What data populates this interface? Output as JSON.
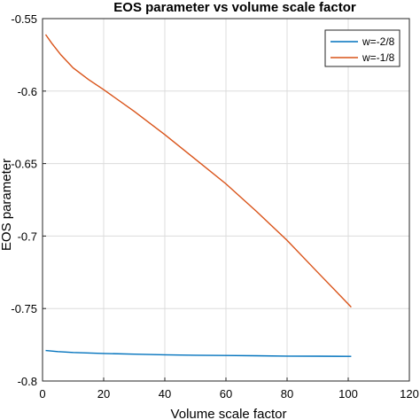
{
  "chart_data": {
    "type": "line",
    "title": "EOS parameter vs volume scale factor",
    "xlabel": "Volume scale factor",
    "ylabel": "EOS parameter",
    "xlim": [
      0,
      120
    ],
    "ylim": [
      -0.8,
      -0.55
    ],
    "xticks": [
      0,
      20,
      40,
      60,
      80,
      100,
      120
    ],
    "yticks": [
      -0.8,
      -0.75,
      -0.7,
      -0.65,
      -0.6,
      -0.55
    ],
    "xtick_labels": [
      "0",
      "20",
      "40",
      "60",
      "80",
      "100",
      "120"
    ],
    "ytick_labels": [
      "-0.8",
      "-0.75",
      "-0.7",
      "-0.65",
      "-0.6",
      "-0.55"
    ],
    "grid": true,
    "legend_position": "top-right",
    "series": [
      {
        "name": "w=-2/8",
        "color": "#0072BD",
        "x": [
          1,
          5,
          10,
          20,
          30,
          40,
          50,
          60,
          70,
          80,
          90,
          101
        ],
        "y": [
          -0.779,
          -0.7797,
          -0.7803,
          -0.781,
          -0.7815,
          -0.7819,
          -0.7822,
          -0.7824,
          -0.7826,
          -0.7828,
          -0.7829,
          -0.783
        ]
      },
      {
        "name": "w=-1/8",
        "color": "#D95319",
        "x": [
          1,
          3,
          6,
          10,
          15,
          20,
          30,
          40,
          50,
          60,
          70,
          80,
          90,
          101
        ],
        "y": [
          -0.561,
          -0.567,
          -0.575,
          -0.584,
          -0.592,
          -0.599,
          -0.614,
          -0.63,
          -0.647,
          -0.664,
          -0.683,
          -0.703,
          -0.725,
          -0.749
        ]
      }
    ]
  }
}
